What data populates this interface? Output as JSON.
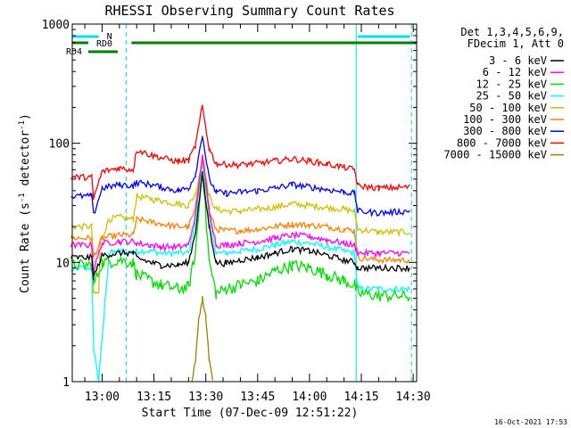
{
  "chart_data": {
    "type": "line",
    "title": "RHESSI Observing Summary Count Rates",
    "xlabel": "Start Time (07-Dec-09 12:51:22)",
    "ylabel_parts": [
      "Count Rate (s",
      "-1",
      " detector",
      "-1",
      ")"
    ],
    "ylabel": "Count Rate (s-1 detector-1)",
    "yscale": "log",
    "ylim": [
      1,
      1000
    ],
    "y_ticks": [
      {
        "value": 1,
        "label": "1"
      },
      {
        "value": 10,
        "label": "10"
      },
      {
        "value": 100,
        "label": "100"
      },
      {
        "value": 1000,
        "label": "1000"
      }
    ],
    "xlim": [
      "12:51:22",
      "14:31:00"
    ],
    "x_ticks": [
      "13:00",
      "13:15",
      "13:30",
      "13:45",
      "14:00",
      "14:15",
      "14:30"
    ],
    "x_tick_minutes": [
      780,
      795,
      810,
      825,
      840,
      855,
      870
    ],
    "grid": false,
    "legend_position": "right",
    "legend_header": [
      "Det 1,3,4,5,6,9,",
      "FDecim 1, Att 0"
    ],
    "series": [
      {
        "name": "3 - 6 keV",
        "color": "#000000",
        "x": [
          "12:51",
          "12:57",
          "12:57:30",
          "13:00",
          "13:05",
          "13:09",
          "13:10",
          "13:14",
          "13:17",
          "13:22",
          "13:25",
          "13:27",
          "13:29",
          "13:31",
          "13:33",
          "13:36",
          "13:40",
          "13:45",
          "13:50",
          "13:55",
          "14:00",
          "14:05",
          "14:10",
          "14:13",
          "14:14",
          "14:20",
          "14:29"
        ],
        "y": [
          11,
          11,
          7.5,
          11.5,
          12,
          12,
          11,
          10,
          9.5,
          9.5,
          10,
          18,
          55,
          20,
          10,
          9.8,
          10.5,
          11,
          12,
          13,
          12.5,
          11.5,
          10.5,
          10,
          9,
          9,
          9
        ]
      },
      {
        "name": "6 - 12 keV",
        "color": "#ff00ff",
        "x": [
          "12:51",
          "12:57",
          "12:57:30",
          "13:00",
          "13:05",
          "13:09",
          "13:10",
          "13:14",
          "13:17",
          "13:22",
          "13:25",
          "13:27",
          "13:29",
          "13:31",
          "13:33",
          "13:36",
          "13:40",
          "13:45",
          "13:50",
          "13:55",
          "14:00",
          "14:05",
          "14:10",
          "14:13",
          "14:14",
          "14:20",
          "14:29"
        ],
        "y": [
          14,
          14,
          8.5,
          14.5,
          15,
          15,
          14.5,
          14,
          13.5,
          13.5,
          14,
          25,
          80,
          28,
          14,
          14,
          14.5,
          15,
          16,
          17,
          16.5,
          15.5,
          14.5,
          14,
          12,
          12,
          12
        ]
      },
      {
        "name": "12 - 25 keV",
        "color": "#00e000",
        "x": [
          "12:51",
          "12:57",
          "12:57:30",
          "13:00",
          "13:05",
          "13:09",
          "13:10",
          "13:14",
          "13:17",
          "13:22",
          "13:25",
          "13:27",
          "13:29",
          "13:31",
          "13:33",
          "13:36",
          "13:40",
          "13:45",
          "13:50",
          "13:55",
          "14:00",
          "14:05",
          "14:10",
          "14:13",
          "14:14",
          "14:20",
          "14:29"
        ],
        "y": [
          9.5,
          9.5,
          6.5,
          10,
          10.5,
          10,
          8,
          7,
          6.5,
          6,
          6.2,
          12,
          62,
          10,
          5.5,
          6,
          6.5,
          7,
          8.5,
          9.5,
          9,
          8,
          7,
          6.5,
          5.5,
          5.3,
          5.2
        ]
      },
      {
        "name": "25 - 50 keV",
        "color": "#00ffff",
        "x": [
          "12:51",
          "12:53",
          "12:55",
          "12:57",
          "12:57:30",
          "12:59",
          "13:02",
          "13:05",
          "13:09",
          "13:10",
          "13:14",
          "13:17",
          "13:22",
          "13:25",
          "13:27",
          "13:29",
          "13:31",
          "13:33",
          "13:36",
          "13:40",
          "13:45",
          "13:50",
          "13:55",
          "14:00",
          "14:05",
          "14:10",
          "14:13",
          "14:14",
          "14:20",
          "14:29"
        ],
        "y": [
          8.5,
          9,
          9,
          9,
          2,
          1,
          12,
          12.5,
          12,
          12.5,
          12.5,
          12,
          12,
          12,
          22,
          70,
          24,
          12,
          12,
          12.5,
          13,
          14,
          15,
          14.5,
          13.5,
          12.5,
          12,
          6,
          6,
          6
        ]
      },
      {
        "name": "50 - 100 keV",
        "color": "#d0c000",
        "x": [
          "12:51",
          "12:57",
          "12:57:30",
          "12:59",
          "12:59:30",
          "13:02",
          "13:05",
          "13:09",
          "13:10",
          "13:14",
          "13:17",
          "13:22",
          "13:25",
          "13:27",
          "13:29",
          "13:31",
          "13:33",
          "13:36",
          "13:40",
          "13:45",
          "13:50",
          "13:55",
          "14:00",
          "14:05",
          "14:10",
          "14:13",
          "14:14",
          "14:20",
          "14:29"
        ],
        "y": [
          20,
          20,
          5.5,
          5.5,
          15,
          23,
          24,
          23,
          36,
          34,
          33,
          31,
          30,
          38,
          72,
          36,
          28,
          27,
          27,
          28,
          29,
          31,
          30,
          29,
          28,
          27,
          19,
          18,
          18
        ]
      },
      {
        "name": "100 - 300 keV",
        "color": "#ff8000",
        "x": [
          "12:51",
          "12:57",
          "12:57:30",
          "13:00",
          "13:05",
          "13:09",
          "13:10",
          "13:14",
          "13:17",
          "13:22",
          "13:25",
          "13:27",
          "13:29",
          "13:31",
          "13:33",
          "13:36",
          "13:40",
          "13:45",
          "13:50",
          "13:55",
          "14:00",
          "14:05",
          "14:10",
          "14:13",
          "14:14",
          "14:20",
          "14:29"
        ],
        "y": [
          16,
          16,
          11,
          16,
          17,
          17,
          23,
          22,
          21,
          20,
          20,
          28,
          80,
          26,
          19,
          18.5,
          18.5,
          19,
          20,
          21,
          20.5,
          20,
          19,
          18.5,
          11,
          10.5,
          10.5
        ]
      },
      {
        "name": "300 - 800 keV",
        "color": "#0000ff",
        "x": [
          "12:51",
          "12:57",
          "12:57:30",
          "13:00",
          "13:05",
          "13:09",
          "13:10",
          "13:14",
          "13:17",
          "13:22",
          "13:25",
          "13:27",
          "13:29",
          "13:31",
          "13:33",
          "13:36",
          "13:40",
          "13:45",
          "13:50",
          "13:55",
          "14:00",
          "14:05",
          "14:10",
          "14:13",
          "14:14",
          "14:20",
          "14:29"
        ],
        "y": [
          36,
          36,
          25,
          42,
          45,
          44,
          47,
          45,
          43,
          40,
          42,
          55,
          118,
          50,
          39,
          38,
          39,
          40,
          42,
          45,
          43,
          41,
          39,
          38,
          27,
          26,
          27
        ]
      },
      {
        "name": "800 - 7000 keV",
        "color": "#ff0000",
        "x": [
          "12:51",
          "12:57",
          "12:57:30",
          "13:00",
          "13:05",
          "13:09",
          "13:10",
          "13:14",
          "13:17",
          "13:22",
          "13:25",
          "13:27",
          "13:29",
          "13:31",
          "13:33",
          "13:36",
          "13:40",
          "13:45",
          "13:50",
          "13:55",
          "14:00",
          "14:05",
          "14:10",
          "14:13",
          "14:14",
          "14:20",
          "14:29"
        ],
        "y": [
          52,
          52,
          34,
          58,
          62,
          60,
          88,
          80,
          76,
          70,
          72,
          95,
          205,
          90,
          68,
          66,
          66,
          68,
          71,
          74,
          71,
          67,
          63,
          60,
          44,
          42,
          43
        ]
      },
      {
        "name": "7000 - 15000 keV",
        "color": "#a08000",
        "x": [
          "13:26",
          "13:27",
          "13:28",
          "13:29",
          "13:30",
          "13:31",
          "13:32"
        ],
        "y": [
          1,
          1.5,
          3.5,
          5,
          3.5,
          1.5,
          1
        ]
      }
    ],
    "annotations": {
      "attenuator_label": "N",
      "rate_decimation_labels": [
        "RD0",
        "RD4"
      ],
      "night_intervals": [
        [
          "12:51:22",
          "12:59"
        ],
        [
          "14:14",
          "14:29"
        ]
      ],
      "attenuator_state_bar": [
        [
          "13:08:30",
          "14:31"
        ]
      ],
      "rd0_intervals": [
        [
          "12:51:22",
          "12:56"
        ],
        [
          "13:09",
          "14:31"
        ]
      ],
      "rd4_intervals": [
        [
          "12:56",
          "13:04:30"
        ]
      ],
      "vertical_markers": [
        "12:51:22",
        "13:07",
        "14:13:30",
        "14:29:30"
      ]
    }
  },
  "footer": {
    "timestamp": "16-Oct-2021 17:53"
  }
}
